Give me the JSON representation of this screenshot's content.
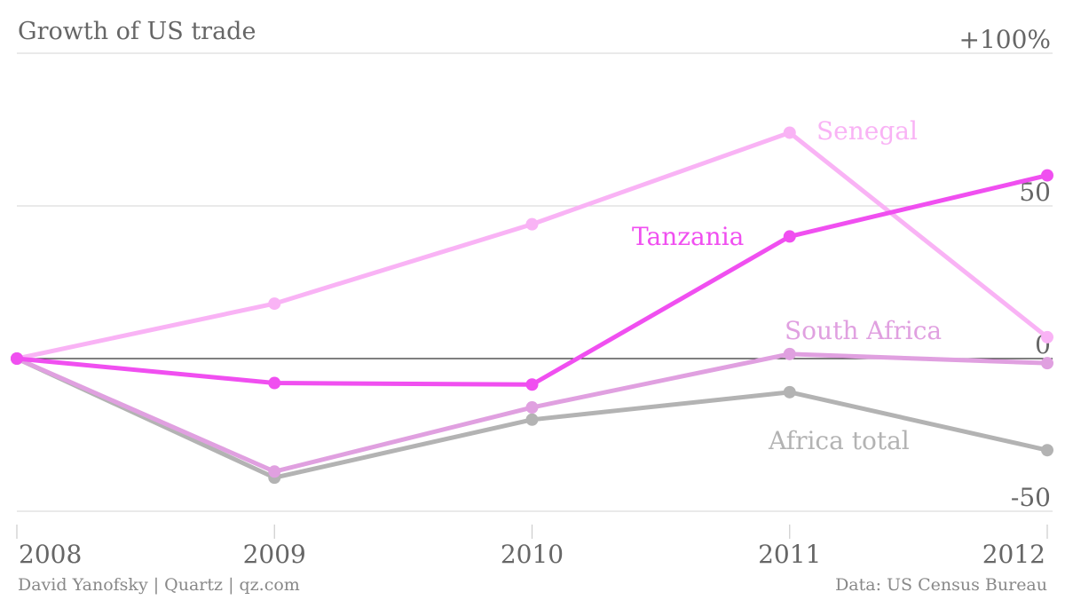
{
  "header": {
    "title": "Growth of US trade"
  },
  "footer": {
    "credit": "David Yanofsky | Quartz | qz.com",
    "source": "Data: US Census Bureau"
  },
  "chart_data": {
    "type": "line",
    "title": "Growth of US trade",
    "x": [
      "2008",
      "2009",
      "2010",
      "2011",
      "2012"
    ],
    "ylim": [
      -50,
      100
    ],
    "yticks": [
      {
        "value": 100,
        "label": "+100%"
      },
      {
        "value": 50,
        "label": "50"
      },
      {
        "value": 0,
        "label": "0"
      },
      {
        "value": -50,
        "label": "-50"
      }
    ],
    "grid": true,
    "zero_line": true,
    "series": [
      {
        "name": "Senegal",
        "color": "#f9b3f5",
        "values": [
          0,
          18,
          44,
          74,
          7
        ]
      },
      {
        "name": "Africa total",
        "color": "#b3b3b3",
        "values": [
          0,
          -39,
          -20,
          -11,
          -30
        ]
      },
      {
        "name": "South Africa",
        "color": "#e0a0e0",
        "values": [
          0,
          -37,
          -16,
          1.5,
          -1.5
        ]
      },
      {
        "name": "Tanzania",
        "color": "#f04ff0",
        "values": [
          0,
          -8,
          -8.5,
          40,
          60
        ]
      }
    ]
  }
}
